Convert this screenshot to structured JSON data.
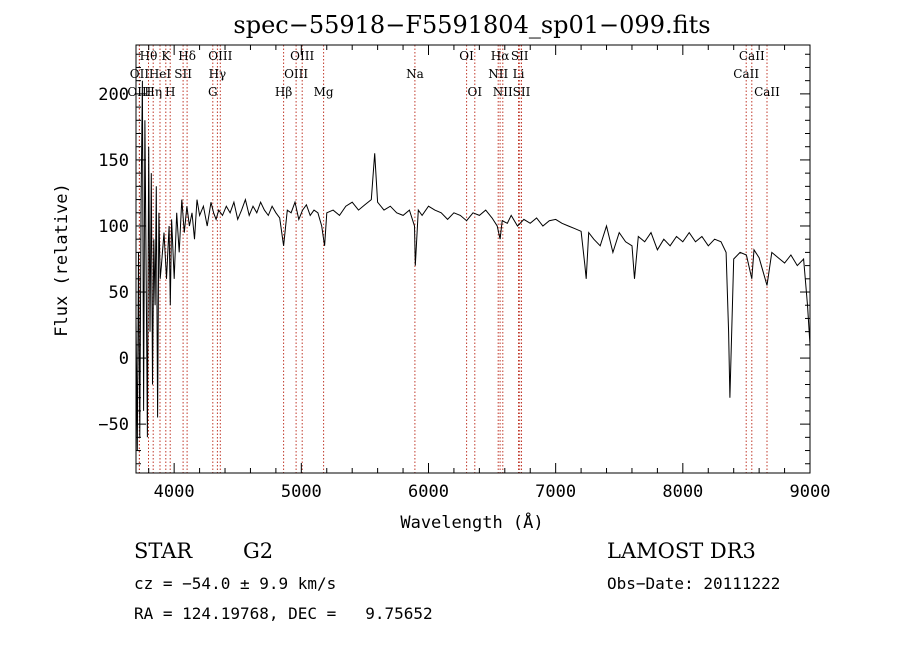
{
  "chart_data": {
    "type": "line",
    "title": "spec−55918−F5591804_sp01−099.fits",
    "xlabel": "Wavelength (Å)",
    "ylabel": "Flux (relative)",
    "xlim": [
      3700,
      9000
    ],
    "ylim": [
      -87,
      237
    ],
    "xticks": [
      4000,
      5000,
      6000,
      7000,
      8000,
      9000
    ],
    "yticks": [
      -50,
      0,
      50,
      100,
      150,
      200
    ],
    "series": [
      {
        "name": "flux",
        "x": [
          3700,
          3710,
          3720,
          3730,
          3740,
          3750,
          3760,
          3770,
          3780,
          3790,
          3800,
          3810,
          3820,
          3830,
          3840,
          3850,
          3860,
          3870,
          3880,
          3890,
          3900,
          3920,
          3940,
          3960,
          3970,
          3980,
          4000,
          4020,
          4040,
          4060,
          4080,
          4100,
          4120,
          4140,
          4160,
          4180,
          4200,
          4230,
          4260,
          4290,
          4310,
          4330,
          4350,
          4380,
          4410,
          4440,
          4470,
          4500,
          4530,
          4560,
          4590,
          4620,
          4650,
          4680,
          4710,
          4740,
          4770,
          4800,
          4830,
          4861,
          4890,
          4920,
          4950,
          4980,
          5010,
          5040,
          5070,
          5100,
          5130,
          5160,
          5175,
          5183,
          5200,
          5250,
          5300,
          5350,
          5400,
          5450,
          5500,
          5550,
          5577,
          5600,
          5650,
          5700,
          5750,
          5800,
          5850,
          5890,
          5896,
          5920,
          5950,
          6000,
          6050,
          6100,
          6150,
          6200,
          6250,
          6300,
          6350,
          6400,
          6450,
          6500,
          6540,
          6563,
          6580,
          6620,
          6650,
          6700,
          6750,
          6800,
          6850,
          6900,
          6950,
          7000,
          7050,
          7100,
          7150,
          7200,
          7230,
          7240,
          7260,
          7300,
          7350,
          7400,
          7450,
          7500,
          7550,
          7600,
          7620,
          7650,
          7700,
          7750,
          7800,
          7850,
          7900,
          7950,
          8000,
          8050,
          8100,
          8150,
          8200,
          8250,
          8300,
          8340,
          8360,
          8370,
          8400,
          8450,
          8500,
          8542,
          8560,
          8600,
          8662,
          8700,
          8750,
          8800,
          8850,
          8900,
          8950,
          8980,
          9000
        ],
        "values": [
          30,
          -70,
          80,
          -60,
          120,
          210,
          -40,
          180,
          60,
          -60,
          160,
          20,
          140,
          -20,
          90,
          40,
          130,
          -45,
          110,
          60,
          70,
          95,
          60,
          100,
          40,
          105,
          60,
          110,
          80,
          120,
          95,
          115,
          100,
          110,
          90,
          120,
          108,
          115,
          100,
          118,
          110,
          105,
          112,
          108,
          115,
          110,
          118,
          105,
          112,
          120,
          108,
          115,
          110,
          118,
          112,
          108,
          115,
          110,
          106,
          85,
          112,
          110,
          118,
          105,
          112,
          116,
          108,
          112,
          110,
          100,
          90,
          85,
          110,
          112,
          108,
          115,
          118,
          112,
          116,
          120,
          155,
          118,
          112,
          115,
          110,
          108,
          112,
          100,
          70,
          112,
          108,
          115,
          112,
          110,
          105,
          110,
          108,
          104,
          110,
          108,
          112,
          106,
          100,
          90,
          104,
          102,
          108,
          100,
          105,
          102,
          106,
          100,
          104,
          105,
          102,
          100,
          98,
          96,
          70,
          60,
          95,
          90,
          85,
          100,
          80,
          95,
          88,
          85,
          60,
          92,
          88,
          95,
          82,
          90,
          85,
          92,
          88,
          95,
          88,
          92,
          85,
          90,
          88,
          80,
          20,
          -30,
          75,
          80,
          78,
          60,
          82,
          76,
          55,
          80,
          76,
          72,
          78,
          70,
          75,
          40,
          10
        ]
      }
    ],
    "line_markers": [
      {
        "label": "Hθ",
        "x": 3798,
        "row": 1
      },
      {
        "label": "OII",
        "x": 3727,
        "row": 2
      },
      {
        "label": "OIII",
        "x": 3727,
        "row": 3
      },
      {
        "label": "K",
        "x": 3934,
        "row": 1
      },
      {
        "label": "HeI",
        "x": 3889,
        "row": 2
      },
      {
        "label": "Hη",
        "x": 3835,
        "row": 3
      },
      {
        "label": "Hδ",
        "x": 4102,
        "row": 1
      },
      {
        "label": "SII",
        "x": 4070,
        "row": 2
      },
      {
        "label": "H",
        "x": 3969,
        "row": 3
      },
      {
        "label": "OIII",
        "x": 4363,
        "row": 1
      },
      {
        "label": "Hγ",
        "x": 4340,
        "row": 2
      },
      {
        "label": "G",
        "x": 4304,
        "row": 3
      },
      {
        "label": "OIII",
        "x": 5007,
        "row": 1
      },
      {
        "label": "OIII",
        "x": 4959,
        "row": 2
      },
      {
        "label": "Hβ",
        "x": 4861,
        "row": 3
      },
      {
        "label": "Mg",
        "x": 5175,
        "row": 3
      },
      {
        "label": "Na",
        "x": 5893,
        "row": 2
      },
      {
        "label": "OI",
        "x": 6300,
        "row": 1
      },
      {
        "label": "OI",
        "x": 6364,
        "row": 3
      },
      {
        "label": "Hα",
        "x": 6563,
        "row": 1
      },
      {
        "label": "NII",
        "x": 6548,
        "row": 2
      },
      {
        "label": "NII",
        "x": 6584,
        "row": 3
      },
      {
        "label": "SII",
        "x": 6717,
        "row": 1
      },
      {
        "label": "Li",
        "x": 6708,
        "row": 2
      },
      {
        "label": "SII",
        "x": 6731,
        "row": 3
      },
      {
        "label": "CaII",
        "x": 8542,
        "row": 1
      },
      {
        "label": "CaII",
        "x": 8498,
        "row": 2
      },
      {
        "label": "CaII",
        "x": 8662,
        "row": 3
      }
    ]
  },
  "info": {
    "object_class": "STAR",
    "subclass": "G2",
    "survey": "LAMOST DR3",
    "redshift": "cz = −54.0 ± 9.9 km/s",
    "obs_date": "Obs−Date: 20111222",
    "coords": "RA = 124.19768, DEC =   9.75652"
  },
  "colors": {
    "marker_line": "#c0392b",
    "spectrum": "#000000",
    "text": "#000000"
  }
}
